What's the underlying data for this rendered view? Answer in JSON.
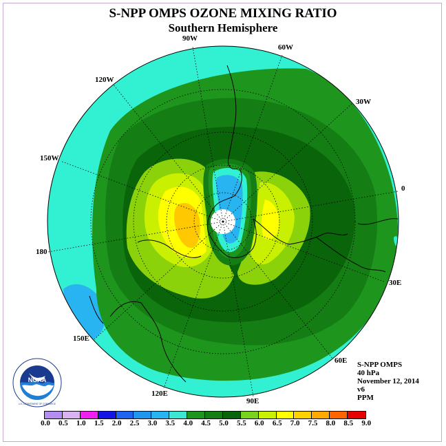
{
  "header": {
    "title": "S-NPP OMPS OZONE MIXING RATIO",
    "subtitle": "Southern Hemisphere"
  },
  "longitudes": {
    "w90": "90W",
    "w60": "60W",
    "w120": "120W",
    "w30": "30W",
    "w150": "150W",
    "zero": "0",
    "e180": "180",
    "e30": "30E",
    "e150": "150E",
    "e60": "60E",
    "e120": "120E",
    "e90": "90E"
  },
  "info": {
    "instrument": "S-NPP OMPS",
    "level": "40 hPa",
    "date": "November 12, 2014",
    "version": "v6",
    "units": "PPM"
  },
  "logo": {
    "name": "NOAA",
    "ring_text": "NATIONAL OCEANIC AND ATMOSPHERIC ADMINISTRATION · U.S. DEPARTMENT OF COMMERCE"
  },
  "colorbar": {
    "ticks": [
      "0.0",
      "0.5",
      "1.0",
      "1.5",
      "2.0",
      "2.5",
      "3.0",
      "3.5",
      "4.0",
      "4.5",
      "5.0",
      "5.5",
      "6.0",
      "6.5",
      "7.0",
      "7.5",
      "8.0",
      "8.5",
      "9.0"
    ],
    "colors": [
      "#b58cf2",
      "#d9b3f0",
      "#f01ef0",
      "#1414e6",
      "#1e64f0",
      "#1e96f0",
      "#28b4f0",
      "#3ce6d2",
      "#1e961e",
      "#147d14",
      "#0a640a",
      "#78d21e",
      "#c8f000",
      "#ffff00",
      "#ffd200",
      "#ffaa00",
      "#ff6400",
      "#e60000",
      "#8c5a3c"
    ]
  },
  "map_colors": {
    "c35": "#32f0d2",
    "c40": "#1e961e",
    "c45": "#147d14",
    "c50": "#0a640a",
    "c55": "#8cd20a",
    "c60": "#c8f000",
    "c65": "#ffff00",
    "c70": "#ffc800",
    "c30": "#28b4f0",
    "c25": "#1e96f0"
  }
}
